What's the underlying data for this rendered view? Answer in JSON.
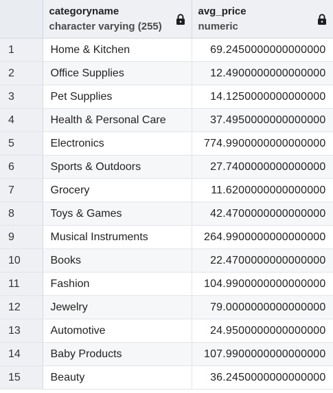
{
  "columns": [
    {
      "name": "categoryname",
      "type": "character varying (255)",
      "icon": "lock-icon"
    },
    {
      "name": "avg_price",
      "type": "numeric",
      "icon": "lock-icon"
    }
  ],
  "rows": [
    {
      "index": "1",
      "categoryname": "Home & Kitchen",
      "avg_price": "69.2450000000000000"
    },
    {
      "index": "2",
      "categoryname": "Office Supplies",
      "avg_price": "12.4900000000000000"
    },
    {
      "index": "3",
      "categoryname": "Pet Supplies",
      "avg_price": "14.1250000000000000"
    },
    {
      "index": "4",
      "categoryname": "Health & Personal Care",
      "avg_price": "37.4950000000000000"
    },
    {
      "index": "5",
      "categoryname": "Electronics",
      "avg_price": "774.9900000000000000"
    },
    {
      "index": "6",
      "categoryname": "Sports & Outdoors",
      "avg_price": "27.7400000000000000"
    },
    {
      "index": "7",
      "categoryname": "Grocery",
      "avg_price": "11.6200000000000000"
    },
    {
      "index": "8",
      "categoryname": "Toys & Games",
      "avg_price": "42.4700000000000000"
    },
    {
      "index": "9",
      "categoryname": "Musical Instruments",
      "avg_price": "264.9900000000000000"
    },
    {
      "index": "10",
      "categoryname": "Books",
      "avg_price": "22.4700000000000000"
    },
    {
      "index": "11",
      "categoryname": "Fashion",
      "avg_price": "104.9900000000000000"
    },
    {
      "index": "12",
      "categoryname": "Jewelry",
      "avg_price": "79.0000000000000000"
    },
    {
      "index": "13",
      "categoryname": "Automotive",
      "avg_price": "24.9500000000000000"
    },
    {
      "index": "14",
      "categoryname": "Baby Products",
      "avg_price": "107.9900000000000000"
    },
    {
      "index": "15",
      "categoryname": "Beauty",
      "avg_price": "36.2450000000000000"
    }
  ]
}
